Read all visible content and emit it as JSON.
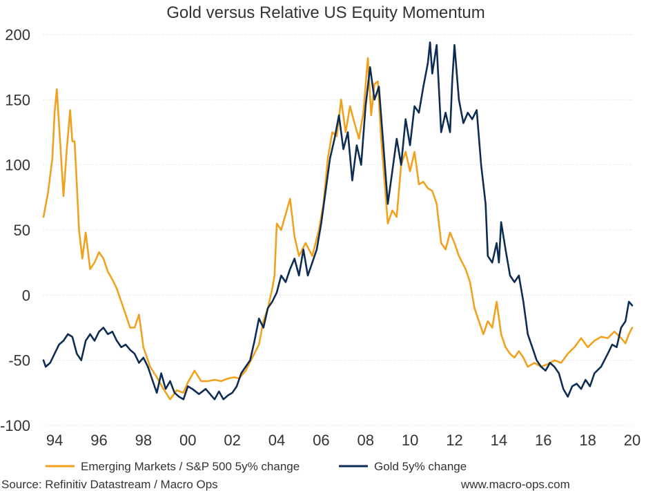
{
  "chart_data": {
    "type": "line",
    "title": "Gold versus Relative US Equity Momentum",
    "xlabel": "",
    "ylabel": "",
    "xlim": [
      1993.5,
      2020.0
    ],
    "ylim": [
      -100,
      200
    ],
    "y_ticks": [
      200,
      150,
      100,
      50,
      0,
      -50,
      -100
    ],
    "y_tick_labels": [
      "200",
      "150",
      "100",
      "50",
      "0",
      "-50",
      "-100"
    ],
    "x_ticks": [
      1994,
      1996,
      1998,
      2000,
      2002,
      2004,
      2006,
      2008,
      2010,
      2012,
      2014,
      2016,
      2018,
      2020
    ],
    "x_tick_labels": [
      "94",
      "96",
      "98",
      "00",
      "02",
      "04",
      "06",
      "08",
      "10",
      "12",
      "14",
      "16",
      "18",
      "20"
    ],
    "grid": true,
    "legend_position": "bottom",
    "series": [
      {
        "name": "Emerging Markets / S&P 500 5y% change",
        "color": "#F0A21E",
        "points": [
          [
            1993.5,
            60
          ],
          [
            1993.7,
            78
          ],
          [
            1993.9,
            105
          ],
          [
            1994.0,
            140
          ],
          [
            1994.1,
            158
          ],
          [
            1994.25,
            118
          ],
          [
            1994.4,
            76
          ],
          [
            1994.55,
            112
          ],
          [
            1994.7,
            142
          ],
          [
            1994.8,
            118
          ],
          [
            1994.9,
            118
          ],
          [
            1995.0,
            85
          ],
          [
            1995.1,
            50
          ],
          [
            1995.25,
            28
          ],
          [
            1995.4,
            48
          ],
          [
            1995.6,
            20
          ],
          [
            1995.8,
            25
          ],
          [
            1996.0,
            33
          ],
          [
            1996.2,
            28
          ],
          [
            1996.4,
            18
          ],
          [
            1996.6,
            12
          ],
          [
            1996.8,
            5
          ],
          [
            1997.0,
            -5
          ],
          [
            1997.2,
            -15
          ],
          [
            1997.4,
            -25
          ],
          [
            1997.6,
            -25
          ],
          [
            1997.8,
            -15
          ],
          [
            1998.0,
            -40
          ],
          [
            1998.3,
            -55
          ],
          [
            1998.6,
            -63
          ],
          [
            1998.9,
            -72
          ],
          [
            1999.2,
            -80
          ],
          [
            1999.5,
            -73
          ],
          [
            1999.8,
            -75
          ],
          [
            2000.0,
            -67
          ],
          [
            2000.3,
            -58
          ],
          [
            2000.6,
            -66
          ],
          [
            2000.9,
            -66
          ],
          [
            2001.2,
            -65
          ],
          [
            2001.5,
            -66
          ],
          [
            2001.8,
            -64
          ],
          [
            2002.1,
            -63
          ],
          [
            2002.3,
            -64
          ],
          [
            2002.6,
            -58
          ],
          [
            2002.9,
            -48
          ],
          [
            2003.2,
            -38
          ],
          [
            2003.4,
            -20
          ],
          [
            2003.6,
            -10
          ],
          [
            2003.8,
            5
          ],
          [
            2003.9,
            15
          ],
          [
            2004.0,
            55
          ],
          [
            2004.2,
            50
          ],
          [
            2004.4,
            62
          ],
          [
            2004.6,
            74
          ],
          [
            2004.8,
            45
          ],
          [
            2005.0,
            30
          ],
          [
            2005.3,
            40
          ],
          [
            2005.6,
            30
          ],
          [
            2005.9,
            50
          ],
          [
            2006.1,
            70
          ],
          [
            2006.3,
            105
          ],
          [
            2006.5,
            125
          ],
          [
            2006.7,
            122
          ],
          [
            2006.9,
            150
          ],
          [
            2007.1,
            125
          ],
          [
            2007.3,
            145
          ],
          [
            2007.5,
            132
          ],
          [
            2007.7,
            120
          ],
          [
            2007.9,
            140
          ],
          [
            2008.1,
            182
          ],
          [
            2008.25,
            138
          ],
          [
            2008.4,
            162
          ],
          [
            2008.55,
            164
          ],
          [
            2008.7,
            120
          ],
          [
            2008.85,
            88
          ],
          [
            2009.0,
            55
          ],
          [
            2009.2,
            65
          ],
          [
            2009.4,
            60
          ],
          [
            2009.6,
            100
          ],
          [
            2009.8,
            110
          ],
          [
            2010.0,
            95
          ],
          [
            2010.2,
            110
          ],
          [
            2010.4,
            85
          ],
          [
            2010.6,
            87
          ],
          [
            2010.8,
            82
          ],
          [
            2011.0,
            80
          ],
          [
            2011.2,
            70
          ],
          [
            2011.4,
            40
          ],
          [
            2011.6,
            35
          ],
          [
            2011.8,
            48
          ],
          [
            2012.0,
            40
          ],
          [
            2012.2,
            30
          ],
          [
            2012.5,
            20
          ],
          [
            2012.7,
            10
          ],
          [
            2012.9,
            -10
          ],
          [
            2013.1,
            -20
          ],
          [
            2013.3,
            -30
          ],
          [
            2013.5,
            -20
          ],
          [
            2013.7,
            -25
          ],
          [
            2013.9,
            -5
          ],
          [
            2014.1,
            -30
          ],
          [
            2014.3,
            -40
          ],
          [
            2014.5,
            -45
          ],
          [
            2014.7,
            -48
          ],
          [
            2014.9,
            -43
          ],
          [
            2015.1,
            -48
          ],
          [
            2015.3,
            -55
          ],
          [
            2015.6,
            -52
          ],
          [
            2015.9,
            -55
          ],
          [
            2016.2,
            -53
          ],
          [
            2016.5,
            -50
          ],
          [
            2016.8,
            -52
          ],
          [
            2017.1,
            -45
          ],
          [
            2017.4,
            -40
          ],
          [
            2017.7,
            -33
          ],
          [
            2018.0,
            -40
          ],
          [
            2018.3,
            -35
          ],
          [
            2018.6,
            -32
          ],
          [
            2018.9,
            -33
          ],
          [
            2019.2,
            -28
          ],
          [
            2019.5,
            -33
          ],
          [
            2019.7,
            -37
          ],
          [
            2019.85,
            -30
          ],
          [
            2020.0,
            -25
          ]
        ]
      },
      {
        "name": "Gold 5y% change",
        "color": "#0D2C54",
        "points": [
          [
            1993.5,
            -50
          ],
          [
            1993.6,
            -55
          ],
          [
            1993.8,
            -52
          ],
          [
            1994.0,
            -45
          ],
          [
            1994.2,
            -38
          ],
          [
            1994.4,
            -35
          ],
          [
            1994.6,
            -30
          ],
          [
            1994.8,
            -32
          ],
          [
            1995.0,
            -45
          ],
          [
            1995.2,
            -50
          ],
          [
            1995.4,
            -35
          ],
          [
            1995.6,
            -30
          ],
          [
            1995.8,
            -35
          ],
          [
            1996.0,
            -28
          ],
          [
            1996.2,
            -25
          ],
          [
            1996.4,
            -30
          ],
          [
            1996.6,
            -28
          ],
          [
            1996.8,
            -35
          ],
          [
            1997.0,
            -40
          ],
          [
            1997.2,
            -38
          ],
          [
            1997.4,
            -42
          ],
          [
            1997.6,
            -45
          ],
          [
            1997.8,
            -52
          ],
          [
            1998.0,
            -48
          ],
          [
            1998.2,
            -55
          ],
          [
            1998.4,
            -65
          ],
          [
            1998.6,
            -75
          ],
          [
            1998.8,
            -60
          ],
          [
            1999.0,
            -72
          ],
          [
            1999.2,
            -66
          ],
          [
            1999.4,
            -75
          ],
          [
            1999.6,
            -78
          ],
          [
            1999.8,
            -80
          ],
          [
            2000.0,
            -70
          ],
          [
            2000.2,
            -72
          ],
          [
            2000.5,
            -76
          ],
          [
            2000.8,
            -72
          ],
          [
            2001.0,
            -76
          ],
          [
            2001.2,
            -80
          ],
          [
            2001.4,
            -74
          ],
          [
            2001.6,
            -80
          ],
          [
            2001.8,
            -77
          ],
          [
            2002.0,
            -75
          ],
          [
            2002.2,
            -70
          ],
          [
            2002.4,
            -60
          ],
          [
            2002.6,
            -55
          ],
          [
            2002.8,
            -50
          ],
          [
            2003.0,
            -35
          ],
          [
            2003.2,
            -18
          ],
          [
            2003.4,
            -25
          ],
          [
            2003.6,
            -10
          ],
          [
            2003.8,
            -5
          ],
          [
            2004.0,
            2
          ],
          [
            2004.2,
            15
          ],
          [
            2004.4,
            10
          ],
          [
            2004.6,
            20
          ],
          [
            2004.8,
            28
          ],
          [
            2005.0,
            15
          ],
          [
            2005.2,
            35
          ],
          [
            2005.4,
            15
          ],
          [
            2005.6,
            25
          ],
          [
            2005.8,
            35
          ],
          [
            2006.0,
            55
          ],
          [
            2006.2,
            80
          ],
          [
            2006.4,
            105
          ],
          [
            2006.6,
            120
          ],
          [
            2006.8,
            138
          ],
          [
            2007.0,
            112
          ],
          [
            2007.2,
            125
          ],
          [
            2007.4,
            88
          ],
          [
            2007.6,
            115
          ],
          [
            2007.8,
            100
          ],
          [
            2008.0,
            145
          ],
          [
            2008.2,
            175
          ],
          [
            2008.4,
            150
          ],
          [
            2008.6,
            160
          ],
          [
            2008.8,
            115
          ],
          [
            2009.0,
            70
          ],
          [
            2009.2,
            95
          ],
          [
            2009.4,
            120
          ],
          [
            2009.6,
            100
          ],
          [
            2009.8,
            135
          ],
          [
            2010.0,
            115
          ],
          [
            2010.2,
            145
          ],
          [
            2010.4,
            140
          ],
          [
            2010.6,
            160
          ],
          [
            2010.8,
            178
          ],
          [
            2010.9,
            194
          ],
          [
            2011.0,
            170
          ],
          [
            2011.2,
            192
          ],
          [
            2011.4,
            125
          ],
          [
            2011.6,
            140
          ],
          [
            2011.8,
            125
          ],
          [
            2011.9,
            165
          ],
          [
            2012.0,
            192
          ],
          [
            2012.2,
            150
          ],
          [
            2012.4,
            132
          ],
          [
            2012.6,
            140
          ],
          [
            2012.8,
            135
          ],
          [
            2013.0,
            142
          ],
          [
            2013.2,
            100
          ],
          [
            2013.4,
            70
          ],
          [
            2013.5,
            30
          ],
          [
            2013.7,
            25
          ],
          [
            2013.9,
            40
          ],
          [
            2014.0,
            25
          ],
          [
            2014.1,
            56
          ],
          [
            2014.3,
            35
          ],
          [
            2014.5,
            15
          ],
          [
            2014.7,
            10
          ],
          [
            2014.9,
            15
          ],
          [
            2015.1,
            -5
          ],
          [
            2015.3,
            -30
          ],
          [
            2015.5,
            -40
          ],
          [
            2015.7,
            -50
          ],
          [
            2015.9,
            -55
          ],
          [
            2016.1,
            -58
          ],
          [
            2016.3,
            -52
          ],
          [
            2016.5,
            -55
          ],
          [
            2016.7,
            -60
          ],
          [
            2016.9,
            -72
          ],
          [
            2017.1,
            -78
          ],
          [
            2017.3,
            -70
          ],
          [
            2017.5,
            -68
          ],
          [
            2017.7,
            -72
          ],
          [
            2017.9,
            -65
          ],
          [
            2018.1,
            -70
          ],
          [
            2018.3,
            -60
          ],
          [
            2018.6,
            -55
          ],
          [
            2018.9,
            -45
          ],
          [
            2019.1,
            -38
          ],
          [
            2019.3,
            -40
          ],
          [
            2019.5,
            -25
          ],
          [
            2019.7,
            -20
          ],
          [
            2019.85,
            -5
          ],
          [
            2020.0,
            -8
          ]
        ]
      }
    ]
  },
  "footer": {
    "source": "Source: Refinitiv Datastream / Macro Ops",
    "website": "www.macro-ops.com"
  }
}
